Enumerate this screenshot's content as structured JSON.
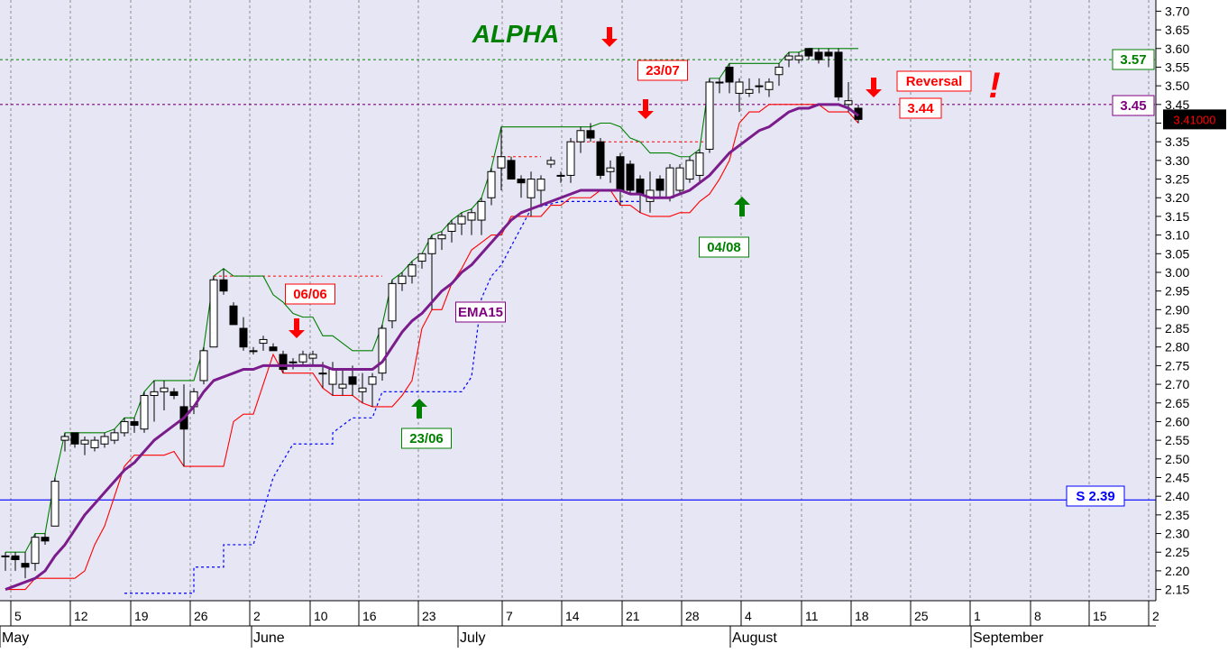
{
  "chart_data": {
    "type": "candlestick",
    "title": "ALPHA",
    "colors": {
      "background": "#e6e6f5",
      "grid": "#8c8c8c",
      "up_candle": "#ffffff",
      "down_candle": "#000000",
      "ema": "#7b1c8c",
      "channel_upper": "#008000",
      "channel_lower": "#ff0000",
      "trailing_stop": "#0000ff",
      "support": "#0000ff",
      "level_357": "#008000",
      "level_345": "#800080",
      "title": "#008000"
    },
    "ylim": [
      2.12,
      3.73
    ],
    "y_ticks": [
      "3.70",
      "3.65",
      "3.60",
      "3.55",
      "3.50",
      "3.45",
      "3.40",
      "3.35",
      "3.30",
      "3.25",
      "3.20",
      "3.15",
      "3.10",
      "3.05",
      "3.00",
      "2.95",
      "2.90",
      "2.85",
      "2.80",
      "2.75",
      "2.70",
      "2.65",
      "2.60",
      "2.55",
      "2.50",
      "2.45",
      "2.40",
      "2.35",
      "2.30",
      "2.25",
      "2.20",
      "2.15"
    ],
    "x_ticks": [
      "5",
      "12",
      "19",
      "26",
      "2",
      "10",
      "16",
      "23",
      "7",
      "14",
      "21",
      "28",
      "4",
      "11",
      "18",
      "25",
      "1",
      "8",
      "15",
      "2"
    ],
    "months": [
      "May",
      "June",
      "July",
      "August",
      "September"
    ],
    "ohlc": [
      [
        2.24,
        2.25,
        2.2,
        2.24
      ],
      [
        2.24,
        2.25,
        2.2,
        2.23
      ],
      [
        2.22,
        2.25,
        2.18,
        2.21
      ],
      [
        2.22,
        2.3,
        2.2,
        2.29
      ],
      [
        2.29,
        2.3,
        2.27,
        2.28
      ],
      [
        2.32,
        2.45,
        2.32,
        2.44
      ],
      [
        2.55,
        2.57,
        2.52,
        2.56
      ],
      [
        2.57,
        2.57,
        2.53,
        2.54
      ],
      [
        2.54,
        2.56,
        2.51,
        2.55
      ],
      [
        2.53,
        2.56,
        2.52,
        2.55
      ],
      [
        2.54,
        2.57,
        2.53,
        2.56
      ],
      [
        2.55,
        2.58,
        2.54,
        2.57
      ],
      [
        2.57,
        2.61,
        2.56,
        2.6
      ],
      [
        2.6,
        2.61,
        2.57,
        2.59
      ],
      [
        2.58,
        2.68,
        2.57,
        2.67
      ],
      [
        2.67,
        2.71,
        2.6,
        2.68
      ],
      [
        2.68,
        2.71,
        2.63,
        2.69
      ],
      [
        2.68,
        2.69,
        2.66,
        2.67
      ],
      [
        2.64,
        2.7,
        2.48,
        2.58
      ],
      [
        2.64,
        2.69,
        2.62,
        2.68
      ],
      [
        2.71,
        2.8,
        2.7,
        2.79
      ],
      [
        2.8,
        2.99,
        2.8,
        2.98
      ],
      [
        2.98,
        3.01,
        2.94,
        2.95
      ],
      [
        2.91,
        2.92,
        2.86,
        2.86
      ],
      [
        2.85,
        2.88,
        2.79,
        2.8
      ],
      [
        2.79,
        2.8,
        2.78,
        2.79
      ],
      [
        2.81,
        2.83,
        2.79,
        2.82
      ],
      [
        2.8,
        2.81,
        2.79,
        2.79
      ],
      [
        2.78,
        2.79,
        2.73,
        2.74
      ],
      [
        2.76,
        2.77,
        2.74,
        2.76
      ],
      [
        2.76,
        2.79,
        2.75,
        2.78
      ],
      [
        2.77,
        2.79,
        2.75,
        2.78
      ],
      [
        2.73,
        2.76,
        2.69,
        2.73
      ],
      [
        2.7,
        2.76,
        2.67,
        2.74
      ],
      [
        2.69,
        2.74,
        2.67,
        2.7
      ],
      [
        2.72,
        2.75,
        2.67,
        2.7
      ],
      [
        2.68,
        2.73,
        2.65,
        2.69
      ],
      [
        2.7,
        2.73,
        2.64,
        2.72
      ],
      [
        2.73,
        2.86,
        2.71,
        2.85
      ],
      [
        2.87,
        2.98,
        2.85,
        2.97
      ],
      [
        2.97,
        3.0,
        2.95,
        2.99
      ],
      [
        2.99,
        3.03,
        2.97,
        3.02
      ],
      [
        3.03,
        3.05,
        3.01,
        3.05
      ],
      [
        3.05,
        3.1,
        2.9,
        3.09
      ],
      [
        3.09,
        3.11,
        3.06,
        3.1
      ],
      [
        3.11,
        3.14,
        3.08,
        3.13
      ],
      [
        3.13,
        3.16,
        3.1,
        3.15
      ],
      [
        3.14,
        3.17,
        3.1,
        3.16
      ],
      [
        3.14,
        3.2,
        3.1,
        3.19
      ],
      [
        3.2,
        3.28,
        3.18,
        3.27
      ],
      [
        3.28,
        3.39,
        3.22,
        3.31
      ],
      [
        3.3,
        3.31,
        3.25,
        3.25
      ],
      [
        3.25,
        3.26,
        3.2,
        3.24
      ],
      [
        3.2,
        3.27,
        3.15,
        3.25
      ],
      [
        3.22,
        3.26,
        3.18,
        3.25
      ],
      [
        3.29,
        3.31,
        3.28,
        3.3
      ],
      [
        3.26,
        3.27,
        3.24,
        3.26
      ],
      [
        3.26,
        3.36,
        3.24,
        3.35
      ],
      [
        3.35,
        3.39,
        3.32,
        3.38
      ],
      [
        3.38,
        3.4,
        3.35,
        3.36
      ],
      [
        3.35,
        3.36,
        3.25,
        3.26
      ],
      [
        3.27,
        3.3,
        3.24,
        3.28
      ],
      [
        3.31,
        3.32,
        3.18,
        3.22
      ],
      [
        3.29,
        3.3,
        3.21,
        3.22
      ],
      [
        3.25,
        3.26,
        3.16,
        3.21
      ],
      [
        3.19,
        3.27,
        3.16,
        3.22
      ],
      [
        3.25,
        3.26,
        3.2,
        3.22
      ],
      [
        3.2,
        3.29,
        3.19,
        3.28
      ],
      [
        3.22,
        3.29,
        3.21,
        3.28
      ],
      [
        3.25,
        3.31,
        3.24,
        3.3
      ],
      [
        3.26,
        3.33,
        3.24,
        3.32
      ],
      [
        3.33,
        3.52,
        3.32,
        3.51
      ],
      [
        3.51,
        3.52,
        3.48,
        3.51
      ],
      [
        3.55,
        3.56,
        3.48,
        3.51
      ],
      [
        3.48,
        3.52,
        3.43,
        3.51
      ],
      [
        3.48,
        3.52,
        3.47,
        3.49
      ],
      [
        3.5,
        3.52,
        3.48,
        3.5
      ],
      [
        3.49,
        3.52,
        3.47,
        3.51
      ],
      [
        3.53,
        3.56,
        3.5,
        3.55
      ],
      [
        3.57,
        3.59,
        3.55,
        3.58
      ],
      [
        3.57,
        3.59,
        3.56,
        3.58
      ],
      [
        3.6,
        3.6,
        3.57,
        3.58
      ],
      [
        3.59,
        3.6,
        3.56,
        3.57
      ],
      [
        3.59,
        3.6,
        3.55,
        3.58
      ],
      [
        3.59,
        3.6,
        3.46,
        3.47
      ],
      [
        3.45,
        3.51,
        3.43,
        3.46
      ],
      [
        3.44,
        3.45,
        3.4,
        3.41
      ]
    ],
    "ema15": [
      2.15,
      2.16,
      2.17,
      2.18,
      2.2,
      2.24,
      2.27,
      2.31,
      2.35,
      2.38,
      2.41,
      2.44,
      2.47,
      2.49,
      2.52,
      2.55,
      2.57,
      2.59,
      2.61,
      2.64,
      2.68,
      2.71,
      2.72,
      2.73,
      2.74,
      2.74,
      2.75,
      2.75,
      2.75,
      2.75,
      2.75,
      2.75,
      2.75,
      2.74,
      2.74,
      2.74,
      2.74,
      2.74,
      2.76,
      2.8,
      2.84,
      2.87,
      2.89,
      2.92,
      2.95,
      2.97,
      3.0,
      3.02,
      3.05,
      3.08,
      3.11,
      3.14,
      3.16,
      3.17,
      3.18,
      3.19,
      3.2,
      3.21,
      3.22,
      3.22,
      3.22,
      3.22,
      3.22,
      3.21,
      3.21,
      3.2,
      3.2,
      3.2,
      3.21,
      3.22,
      3.24,
      3.26,
      3.29,
      3.32,
      3.34,
      3.36,
      3.38,
      3.39,
      3.41,
      3.43,
      3.44,
      3.44,
      3.45,
      3.45,
      3.45,
      3.44,
      3.42
    ],
    "channel_upper": [
      2.25,
      2.25,
      2.25,
      2.3,
      2.3,
      2.45,
      2.57,
      2.57,
      2.57,
      2.57,
      2.57,
      2.58,
      2.61,
      2.61,
      2.68,
      2.71,
      2.71,
      2.71,
      2.71,
      2.71,
      2.8,
      2.99,
      3.01,
      2.99,
      2.99,
      2.99,
      2.99,
      2.94,
      2.92,
      2.89,
      2.88,
      2.88,
      2.83,
      2.83,
      2.81,
      2.79,
      2.79,
      2.79,
      2.86,
      2.98,
      3.0,
      3.03,
      3.05,
      3.1,
      3.11,
      3.14,
      3.16,
      3.17,
      3.2,
      3.28,
      3.39,
      3.39,
      3.39,
      3.39,
      3.39,
      3.39,
      3.39,
      3.39,
      3.39,
      3.39,
      3.4,
      3.4,
      3.39,
      3.36,
      3.35,
      3.32,
      3.32,
      3.32,
      3.31,
      3.31,
      3.33,
      3.52,
      3.52,
      3.56,
      3.56,
      3.56,
      3.56,
      3.56,
      3.56,
      3.59,
      3.59,
      3.6,
      3.6,
      3.6,
      3.6,
      3.6,
      3.6
    ],
    "channel_lower": [
      2.15,
      2.15,
      2.15,
      2.18,
      2.18,
      2.18,
      2.18,
      2.18,
      2.2,
      2.27,
      2.32,
      2.4,
      2.48,
      2.51,
      2.51,
      2.51,
      2.51,
      2.52,
      2.48,
      2.48,
      2.48,
      2.48,
      2.48,
      2.6,
      2.62,
      2.62,
      2.7,
      2.78,
      2.73,
      2.73,
      2.73,
      2.73,
      2.69,
      2.67,
      2.67,
      2.67,
      2.65,
      2.64,
      2.64,
      2.64,
      2.67,
      2.71,
      2.85,
      2.9,
      2.9,
      2.97,
      3.01,
      3.06,
      3.08,
      3.1,
      3.1,
      3.15,
      3.15,
      3.15,
      3.15,
      3.18,
      3.18,
      3.2,
      3.2,
      3.2,
      3.22,
      3.22,
      3.18,
      3.18,
      3.16,
      3.15,
      3.15,
      3.15,
      3.16,
      3.16,
      3.19,
      3.21,
      3.25,
      3.3,
      3.4,
      3.43,
      3.43,
      3.45,
      3.45,
      3.45,
      3.45,
      3.45,
      3.45,
      3.43,
      3.43,
      3.43,
      3.4
    ],
    "trailing_stop": [
      [
        12,
        2.14
      ],
      [
        19,
        2.14
      ],
      [
        19,
        2.21
      ],
      [
        22,
        2.21
      ],
      [
        22,
        2.27
      ],
      [
        25,
        2.27
      ],
      [
        27,
        2.45
      ],
      [
        29,
        2.54
      ],
      [
        33,
        2.54
      ],
      [
        33,
        2.57
      ],
      [
        35,
        2.61
      ],
      [
        37,
        2.61
      ],
      [
        38,
        2.68
      ],
      [
        46,
        2.68
      ],
      [
        47,
        2.72
      ],
      [
        48,
        2.93
      ],
      [
        49,
        2.99
      ],
      [
        50,
        3.02
      ],
      [
        51,
        3.07
      ],
      [
        52,
        3.12
      ],
      [
        53,
        3.17
      ],
      [
        56,
        3.19
      ],
      [
        64,
        3.19
      ]
    ],
    "resistance_dotted": [
      {
        "x0": 21,
        "x1": 38,
        "y": 2.99,
        "color": "#ff0000"
      },
      {
        "x0": 49,
        "x1": 54,
        "y": 3.31,
        "color": "#ff0000"
      },
      {
        "x0": 57,
        "x1": 71,
        "y": 3.35,
        "color": "#ff0000"
      }
    ],
    "support_line": {
      "y": 2.39,
      "label": "S 2.39"
    },
    "level_3_57": {
      "y": 3.57,
      "label": "3.57"
    },
    "level_3_45": {
      "y": 3.45,
      "label": "3.45"
    },
    "annotations": [
      {
        "text": "06/06",
        "i": 26,
        "y": 2.93,
        "color": "#ff0000",
        "kind": "box"
      },
      {
        "text": "23/07",
        "i": 63,
        "y": 3.54,
        "color": "#ff0000",
        "kind": "box"
      },
      {
        "text": "23/06",
        "i": 38,
        "y": 2.54,
        "color": "#008000",
        "kind": "box"
      },
      {
        "text": "04/08",
        "i": 69,
        "y": 3.07,
        "color": "#008000",
        "kind": "box"
      },
      {
        "text": "EMA15",
        "i": 43,
        "y": 2.88,
        "color": "#800080",
        "kind": "box"
      },
      {
        "text": "Reversal",
        "i": 0,
        "y": 3.5,
        "color": "#ff0000",
        "kind": "box"
      },
      {
        "text": "3.44",
        "i": 0,
        "y": 3.44,
        "color": "#ff0000",
        "kind": "box"
      }
    ],
    "arrows": [
      {
        "i": 27,
        "y": 2.86,
        "dir": "down",
        "color": "#ff0000"
      },
      {
        "i": 59,
        "y": 3.4,
        "dir": "down",
        "color": "#ff0000"
      },
      {
        "i": 39,
        "y": 2.65,
        "dir": "up",
        "color": "#008000"
      },
      {
        "i": 68,
        "y": 3.21,
        "dir": "up",
        "color": "#008000"
      },
      {
        "i": 80,
        "y": 3.52,
        "dir": "down",
        "color": "#ff0000"
      }
    ],
    "last_price": "3.41000",
    "grid": true
  }
}
